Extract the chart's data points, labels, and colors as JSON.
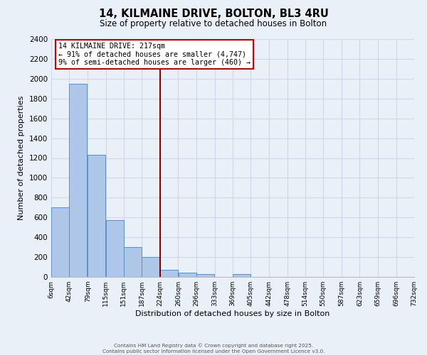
{
  "title": "14, KILMAINE DRIVE, BOLTON, BL3 4RU",
  "subtitle": "Size of property relative to detached houses in Bolton",
  "xlabel": "Distribution of detached houses by size in Bolton",
  "ylabel": "Number of detached properties",
  "bin_edges": [
    6,
    42,
    79,
    115,
    151,
    187,
    224,
    260,
    296,
    333,
    369,
    405,
    442,
    478,
    514,
    550,
    587,
    623,
    659,
    696,
    732
  ],
  "bar_heights": [
    700,
    1950,
    1230,
    570,
    300,
    200,
    75,
    40,
    30,
    0,
    30,
    0,
    0,
    0,
    0,
    0,
    0,
    0,
    0,
    0
  ],
  "bar_color": "#aec6e8",
  "bar_edge_color": "#5b8fc9",
  "background_color": "#eaf0f8",
  "grid_color": "#d0d8e8",
  "vline_x": 224,
  "vline_color": "#8b0000",
  "ylim": [
    0,
    2400
  ],
  "yticks": [
    0,
    200,
    400,
    600,
    800,
    1000,
    1200,
    1400,
    1600,
    1800,
    2000,
    2200,
    2400
  ],
  "annotation_title": "14 KILMAINE DRIVE: 217sqm",
  "annotation_line2": "← 91% of detached houses are smaller (4,747)",
  "annotation_line3": "9% of semi-detached houses are larger (460) →",
  "annotation_box_color": "#ffffff",
  "annotation_border_color": "#cc0000",
  "footer_line1": "Contains HM Land Registry data © Crown copyright and database right 2025.",
  "footer_line2": "Contains public sector information licensed under the Open Government Licence v3.0.",
  "tick_labels": [
    "6sqm",
    "42sqm",
    "79sqm",
    "115sqm",
    "151sqm",
    "187sqm",
    "224sqm",
    "260sqm",
    "296sqm",
    "333sqm",
    "369sqm",
    "405sqm",
    "442sqm",
    "478sqm",
    "514sqm",
    "550sqm",
    "587sqm",
    "623sqm",
    "659sqm",
    "696sqm",
    "732sqm"
  ]
}
